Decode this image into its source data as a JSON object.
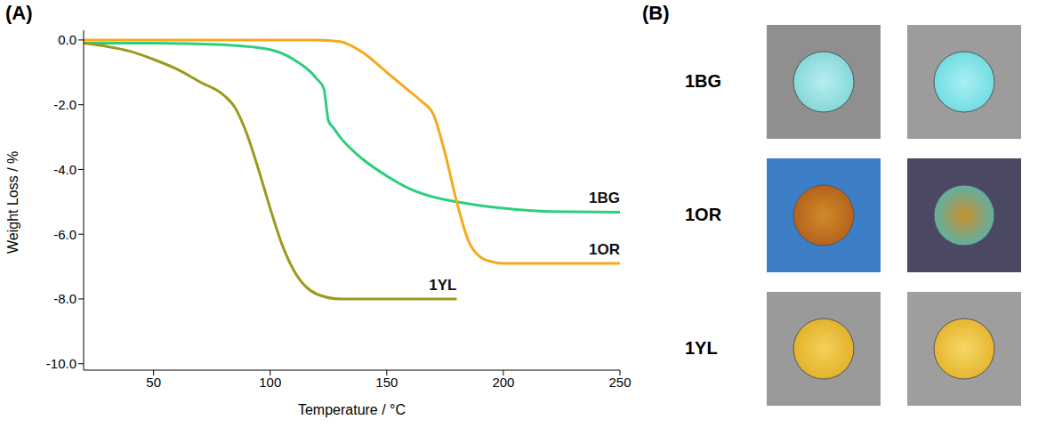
{
  "chart_data": {
    "type": "line",
    "panel": "(A)",
    "x_label": "Temperature / °C",
    "y_label": "Weight Loss / %",
    "xlim": [
      20,
      250
    ],
    "ylim": [
      -10.2,
      0.3
    ],
    "xticks": [
      50,
      100,
      150,
      200,
      250
    ],
    "yticks": [
      {
        "value": 0,
        "label": "0.0"
      },
      {
        "value": -2,
        "label": "-2.0"
      },
      {
        "value": -4,
        "label": "-4.0"
      },
      {
        "value": -6,
        "label": "-6.0"
      },
      {
        "value": -8,
        "label": "-8.0"
      },
      {
        "value": -10,
        "label": "-10.0"
      }
    ],
    "grid": false,
    "series": [
      {
        "name": "1BG",
        "color": "#2bd07a",
        "x": [
          20,
          50,
          80,
          100,
          110,
          120,
          123,
          125,
          127,
          130,
          140,
          150,
          160,
          170,
          180,
          200,
          220,
          250
        ],
        "values": [
          -0.1,
          -0.1,
          -0.15,
          -0.3,
          -0.6,
          -1.2,
          -1.5,
          -2.5,
          -2.7,
          -3.0,
          -3.7,
          -4.2,
          -4.6,
          -4.85,
          -5.0,
          -5.2,
          -5.3,
          -5.32
        ]
      },
      {
        "name": "1OR",
        "color": "#f7a81b",
        "x": [
          20,
          120,
          130,
          140,
          150,
          160,
          165,
          170,
          175,
          180,
          185,
          190,
          195,
          200,
          250
        ],
        "values": [
          0,
          0,
          -0.05,
          -0.4,
          -1.0,
          -1.6,
          -1.9,
          -2.3,
          -3.5,
          -5.0,
          -6.2,
          -6.7,
          -6.85,
          -6.9,
          -6.9
        ]
      },
      {
        "name": "1YL",
        "color": "#9c9a1c",
        "x": [
          20,
          30,
          40,
          50,
          60,
          70,
          80,
          85,
          90,
          95,
          100,
          105,
          110,
          115,
          120,
          130,
          150,
          180
        ],
        "values": [
          -0.1,
          -0.2,
          -0.35,
          -0.6,
          -0.9,
          -1.3,
          -1.7,
          -2.1,
          -2.9,
          -4.0,
          -5.2,
          -6.3,
          -7.1,
          -7.6,
          -7.85,
          -8.0,
          -8.0,
          -8.0
        ]
      }
    ]
  },
  "panel_b": {
    "panel": "(B)",
    "rows": [
      "1BG",
      "1OR",
      "1YL"
    ]
  }
}
